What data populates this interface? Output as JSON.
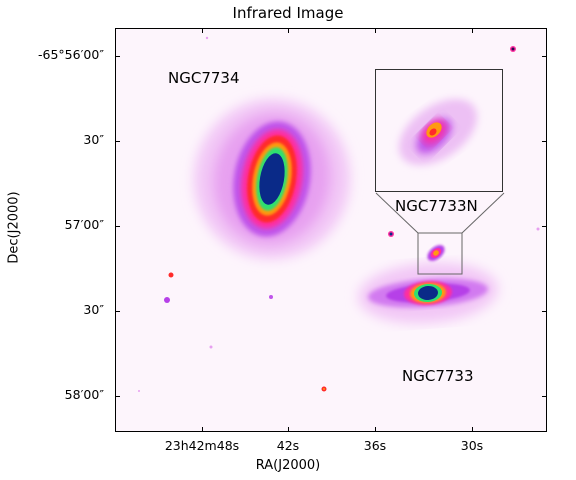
{
  "title": "Infrared Image",
  "axes": {
    "xlabel": "RA(J2000)",
    "ylabel": "Dec(J2000)",
    "x_ticks": [
      "23h42m48s",
      "42s",
      "36s",
      "30s"
    ],
    "y_ticks": [
      "-65°56′00″",
      "30″",
      "57′00″",
      "30″",
      "58′00″"
    ]
  },
  "labels": {
    "galaxy_a": "NGC7734",
    "galaxy_b": "NGC7733",
    "galaxy_c": "NGC7733N"
  },
  "colors": {
    "background": "#fdf5fc",
    "faint": "#e9a9f1",
    "purple": "#b640e8",
    "magenta": "#ff2fa0",
    "red": "#ff2a2a",
    "orange": "#ff9a10",
    "green": "#2fe070",
    "navy": "#0a2a88"
  }
}
